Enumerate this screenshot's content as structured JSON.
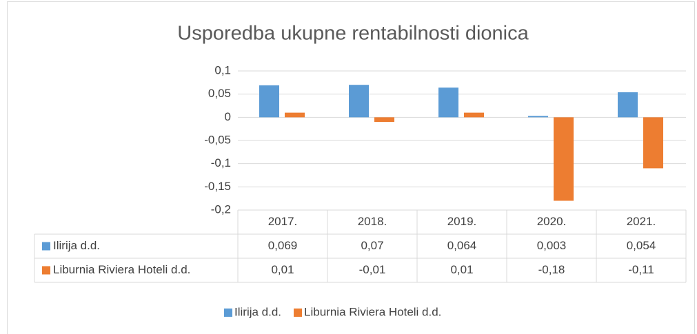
{
  "chart_data": {
    "type": "bar",
    "title": "Usporedba ukupne rentabilnosti dionica",
    "categories": [
      "2017.",
      "2018.",
      "2019.",
      "2020.",
      "2021."
    ],
    "series": [
      {
        "name": "Ilirija d.d.",
        "color": "#5b9bd5",
        "values": [
          0.069,
          0.07,
          0.064,
          0.003,
          0.054
        ],
        "value_labels": [
          "0,069",
          "0,07",
          "0,064",
          "0,003",
          "0,054"
        ]
      },
      {
        "name": "Liburnia Riviera Hoteli d.d.",
        "color": "#ed7d31",
        "values": [
          0.01,
          -0.01,
          0.01,
          -0.18,
          -0.11
        ],
        "value_labels": [
          "0,01",
          "-0,01",
          "0,01",
          "-0,18",
          "-0,11"
        ]
      }
    ],
    "ylim": [
      -0.2,
      0.1
    ],
    "yticks": [
      {
        "value": -0.2,
        "label": "-0,2"
      },
      {
        "value": -0.15,
        "label": "-0,15"
      },
      {
        "value": -0.1,
        "label": "-0,1"
      },
      {
        "value": -0.05,
        "label": "-0,05"
      },
      0,
      {
        "value": 0.05,
        "label": "0,05"
      },
      {
        "value": 0.1,
        "label": "0,1"
      }
    ],
    "grid": true,
    "legend": "bottom"
  }
}
